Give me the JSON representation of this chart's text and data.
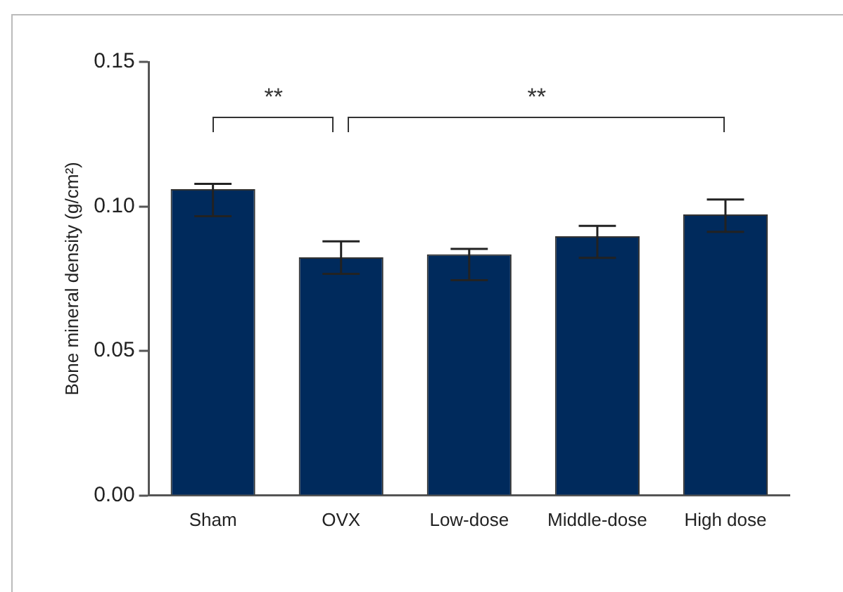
{
  "chart_data": {
    "type": "bar",
    "ylabel": "Bone mineral density (g/cm²)",
    "categories": [
      "Sham",
      "OVX",
      "Low-dose",
      "Middle-dose",
      "High dose"
    ],
    "values": [
      0.106,
      0.0824,
      0.0834,
      0.0897,
      0.0972
    ],
    "errors": [
      [
        0.0966,
        0.1078
      ],
      [
        0.0767,
        0.0879
      ],
      [
        0.0745,
        0.0853
      ],
      [
        0.0822,
        0.0933
      ],
      [
        0.0912,
        0.1024
      ]
    ],
    "color": "#002a5c",
    "ylim": [
      0,
      0.15
    ],
    "yticks": [
      {
        "value": 0,
        "label": "0.00"
      },
      {
        "value": 0.05,
        "label": "0.05"
      },
      {
        "value": 0.1,
        "label": "0.10"
      },
      {
        "value": 0.15,
        "label": "0.15"
      }
    ],
    "grid": false,
    "legend": false,
    "annotations": [
      "**",
      "**"
    ]
  }
}
